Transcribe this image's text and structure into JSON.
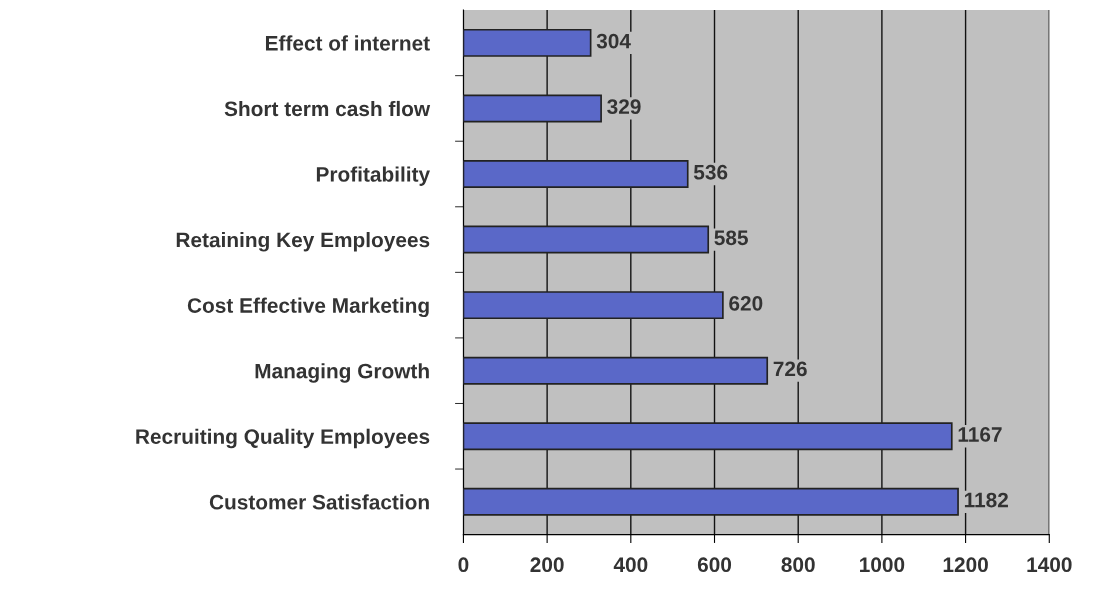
{
  "chart_data": {
    "type": "bar",
    "orientation": "horizontal",
    "categories": [
      "Effect of internet",
      "Short term cash flow",
      "Profitability",
      "Retaining Key Employees",
      "Cost Effective Marketing",
      "Managing Growth",
      "Recruiting Quality Employees",
      "Customer Satisfaction"
    ],
    "values": [
      304,
      329,
      536,
      585,
      620,
      726,
      1167,
      1182
    ],
    "color": "#5a68c8",
    "xlim": [
      0,
      1400
    ],
    "xticks": [
      0,
      200,
      400,
      600,
      800,
      1000,
      1200,
      1400
    ],
    "grid": "x",
    "data_labels": true,
    "legend": false
  }
}
